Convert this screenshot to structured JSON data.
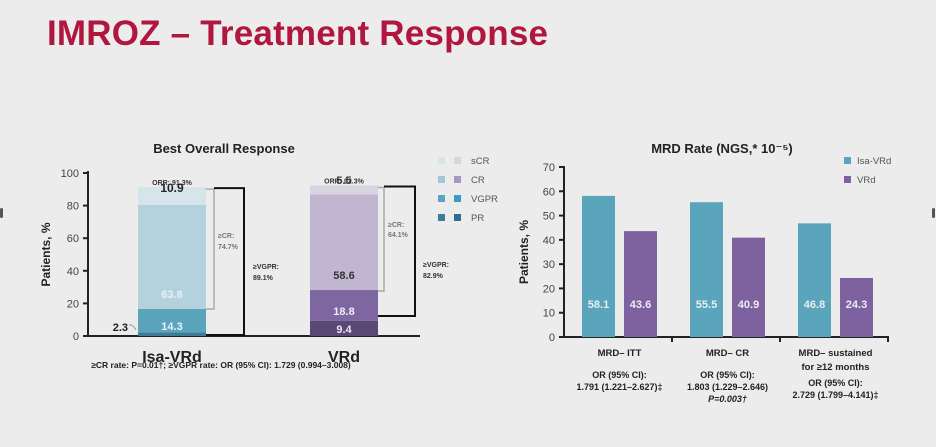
{
  "slide": {
    "title": "IMROZ – Treatment Response"
  },
  "chart_data": [
    {
      "type": "bar",
      "stacked": true,
      "title": "Best Overall Response",
      "ylabel": "Patients, %",
      "xlabel": "",
      "ylim": [
        0,
        100
      ],
      "yticks": [
        0,
        20,
        40,
        60,
        80,
        100
      ],
      "categories": [
        "Isa-VRd",
        "VRd"
      ],
      "series": [
        {
          "name": "PR",
          "values": [
            2.3,
            9.4
          ],
          "colors": [
            "#3f7d96",
            "#5a4775"
          ],
          "labels": [
            "2.3",
            "9.4"
          ]
        },
        {
          "name": "VGPR",
          "values": [
            14.3,
            18.8
          ],
          "colors": [
            "#5aa5bb",
            "#7e66a0"
          ],
          "labels": [
            "14.3",
            "18.8"
          ]
        },
        {
          "name": "CR",
          "values": [
            63.8,
            58.6
          ],
          "colors": [
            "#b3d2dd",
            "#c1b6d2"
          ],
          "labels": [
            "63.8",
            "58.6"
          ]
        },
        {
          "name": "sCR",
          "values": [
            10.9,
            5.5
          ],
          "colors": [
            "#d5e5eb",
            "#dad4e2"
          ],
          "labels": [
            "10.9",
            "5.5"
          ]
        }
      ],
      "annotations": {
        "orr": [
          "ORR: 91.3%",
          "ORR: 92.3%"
        ],
        "ge_cr": [
          {
            "label": "≥CR:",
            "value": "74.7%"
          },
          {
            "label": "≥CR:",
            "value": "64.1%"
          }
        ],
        "ge_vgpr": [
          {
            "label": "≥VGPR:",
            "value": "89.1%"
          },
          {
            "label": "≥VGPR:",
            "value": "82.9%"
          }
        ]
      },
      "legend": {
        "placement": "right",
        "items": [
          {
            "label": "sCR",
            "colors": [
              "#d5e5eb",
              "#dad4e2"
            ]
          },
          {
            "label": "CR",
            "colors": [
              "#9fc8d6",
              "#a898c0"
            ]
          },
          {
            "label": "VGPR",
            "colors": [
              "#5aa5bb",
              "#3a9cc8"
            ]
          },
          {
            "label": "PR",
            "colors": [
              "#3f7d96",
              "#2e6d94"
            ]
          }
        ]
      },
      "footnote": "≥CR rate: P=0.01†; ≥VGPR rate: OR (95% CI): 1.729 (0.994–3.008)"
    },
    {
      "type": "bar",
      "title": "MRD Rate (NGS,* 10⁻⁵)",
      "ylabel": "Patients, %",
      "xlabel": "",
      "ylim": [
        0,
        70
      ],
      "yticks": [
        0,
        10,
        20,
        30,
        40,
        50,
        60,
        70
      ],
      "categories": [
        "MRD– ITT",
        "MRD– CR",
        "MRD– sustained for ≥12 months"
      ],
      "category_lines": [
        [
          "MRD– ITT"
        ],
        [
          "MRD– CR"
        ],
        [
          "MRD– sustained",
          "for ≥12 months"
        ]
      ],
      "series": [
        {
          "name": "Isa-VRd",
          "color": "#5aa5bb",
          "values": [
            58.1,
            55.5,
            46.8
          ]
        },
        {
          "name": "VRd",
          "color": "#7e62a0",
          "values": [
            43.6,
            40.9,
            24.3
          ]
        }
      ],
      "legend": {
        "placement": "top-right",
        "items": [
          "Isa-VRd",
          "VRd"
        ]
      },
      "stats": [
        [
          "OR (95% CI):",
          "1.791 (1.221–2.627)‡"
        ],
        [
          "OR (95% CI):",
          "1.803 (1.229–2.646)",
          "P=0.003†"
        ],
        [
          "OR (95% CI):",
          "2.729 (1.799–4.141)‡"
        ]
      ]
    }
  ]
}
